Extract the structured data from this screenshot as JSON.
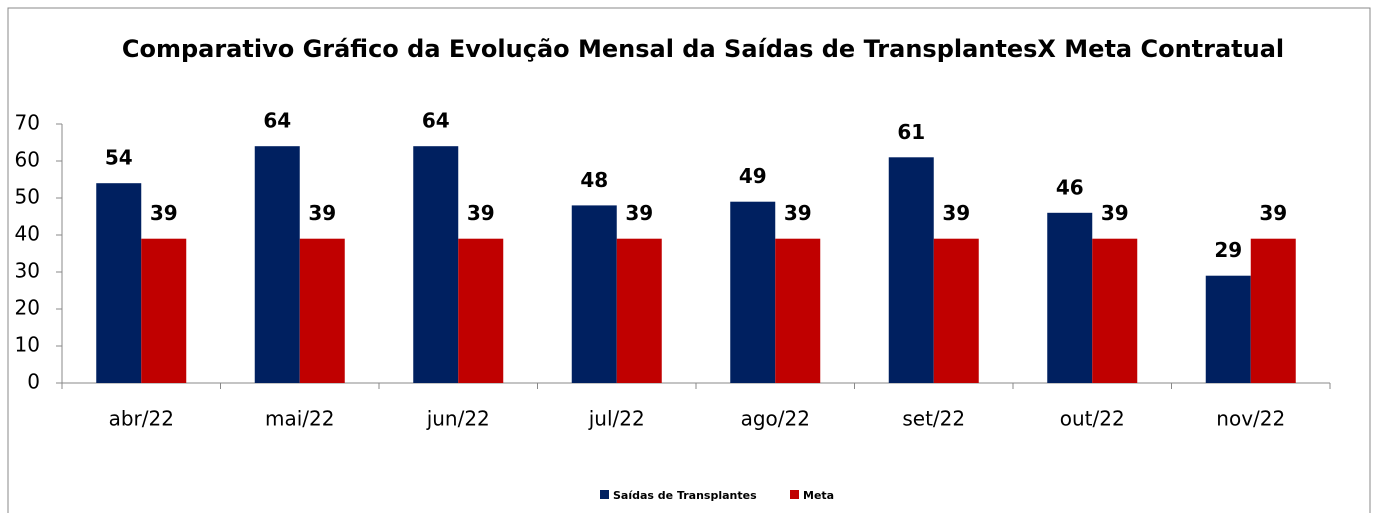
{
  "chart_data": {
    "type": "bar",
    "title": "Comparativo Gráfico da Evolução Mensal da Saídas de TransplantesX Meta Contratual",
    "categories": [
      "abr/22",
      "mai/22",
      "jun/22",
      "jul/22",
      "ago/22",
      "set/22",
      "out/22",
      "nov/22"
    ],
    "series": [
      {
        "name": "Saídas de Transplantes",
        "color": "#002060",
        "values": [
          54,
          64,
          64,
          48,
          49,
          61,
          46,
          29
        ]
      },
      {
        "name": "Meta",
        "color": "#c00000",
        "values": [
          39,
          39,
          39,
          39,
          39,
          39,
          39,
          39
        ]
      }
    ],
    "ylim": [
      0,
      70
    ],
    "yticks": [
      0,
      10,
      20,
      30,
      40,
      50,
      60,
      70
    ],
    "legend": "bottom"
  }
}
